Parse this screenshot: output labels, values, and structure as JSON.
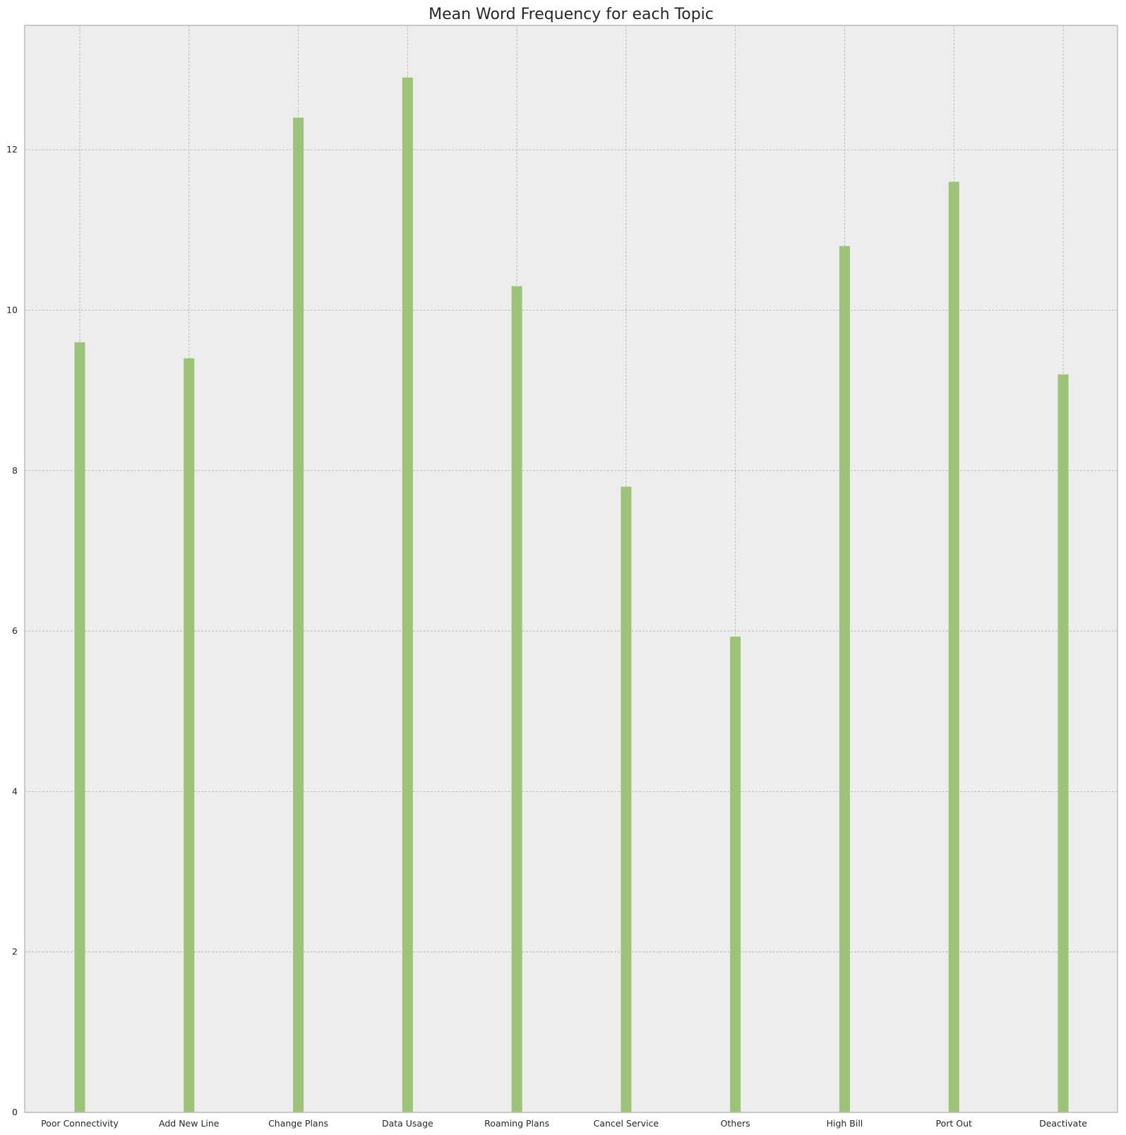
{
  "chart_data": {
    "type": "bar",
    "title": "Mean Word Frequency for each Topic",
    "xlabel": "",
    "ylabel": "",
    "categories": [
      "Poor Connectivity",
      "Add New Line",
      "Change Plans",
      "Data Usage",
      "Roaming Plans",
      "Cancel Service",
      "Others",
      "High Bill",
      "Port Out",
      "Deactivate"
    ],
    "values": [
      9.6,
      9.4,
      12.4,
      12.9,
      10.3,
      7.8,
      5.93,
      10.8,
      11.6,
      9.2
    ],
    "yticks": [
      0,
      2,
      4,
      6,
      8,
      10,
      12
    ],
    "ylim": [
      0,
      13.55
    ],
    "grid": true,
    "bar_color": "#9dc379",
    "background_color": "#ededed",
    "grid_color": "#b2b2b2"
  }
}
